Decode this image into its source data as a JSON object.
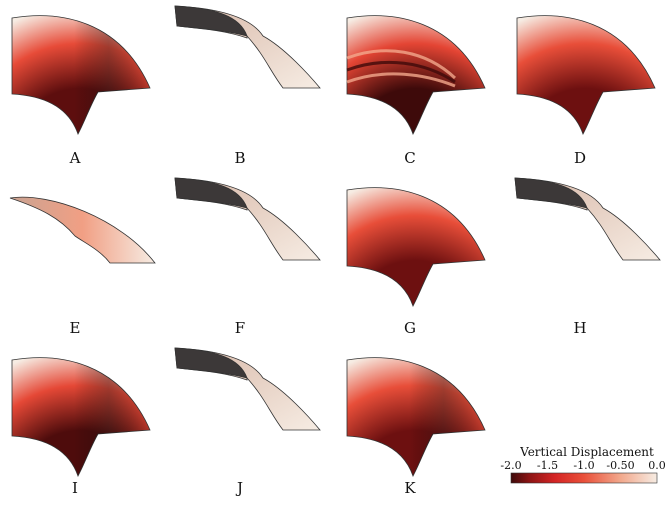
{
  "colormap": {
    "stops": [
      {
        "v": -2.0,
        "color": "#3e0a0a"
      },
      {
        "v": -1.75,
        "color": "#8c1414"
      },
      {
        "v": -1.4,
        "color": "#d42424"
      },
      {
        "v": -1.0,
        "color": "#e9503a"
      },
      {
        "v": -0.5,
        "color": "#f2a88c"
      },
      {
        "v": 0.0,
        "color": "#f6ece3"
      }
    ],
    "deep_shadow": "#3c3838",
    "outline": "#333333"
  },
  "colorbar": {
    "title": "Vertical Displacement",
    "ticks": [
      "-2.0",
      "-1.5",
      "-1.0",
      "-0.50",
      "0.0"
    ],
    "tick_values": [
      -2.0,
      -1.5,
      -1.0,
      -0.5,
      0.0
    ],
    "range": [
      -2.0,
      0.0
    ]
  },
  "panels": [
    {
      "label": "A",
      "min_value": -1.9,
      "shape": "sector",
      "style": "radial-shaded"
    },
    {
      "label": "B",
      "min_value": 0.0,
      "shape": "twisted",
      "style": "flipped-dark"
    },
    {
      "label": "C",
      "min_value": -2.0,
      "shape": "sector",
      "style": "rippled"
    },
    {
      "label": "D",
      "min_value": -1.85,
      "shape": "sector",
      "style": "radial"
    },
    {
      "label": "E",
      "min_value": -0.55,
      "shape": "thin",
      "style": "light"
    },
    {
      "label": "F",
      "min_value": 0.0,
      "shape": "twisted",
      "style": "flipped-dark"
    },
    {
      "label": "G",
      "min_value": -1.85,
      "shape": "sector",
      "style": "radial"
    },
    {
      "label": "H",
      "min_value": 0.0,
      "shape": "twisted",
      "style": "flipped-dark"
    },
    {
      "label": "I",
      "min_value": -1.95,
      "shape": "sector",
      "style": "radial-shaded"
    },
    {
      "label": "J",
      "min_value": 0.0,
      "shape": "twisted",
      "style": "flipped-dark"
    },
    {
      "label": "K",
      "min_value": -1.85,
      "shape": "sector",
      "style": "radial-shaded"
    }
  ]
}
